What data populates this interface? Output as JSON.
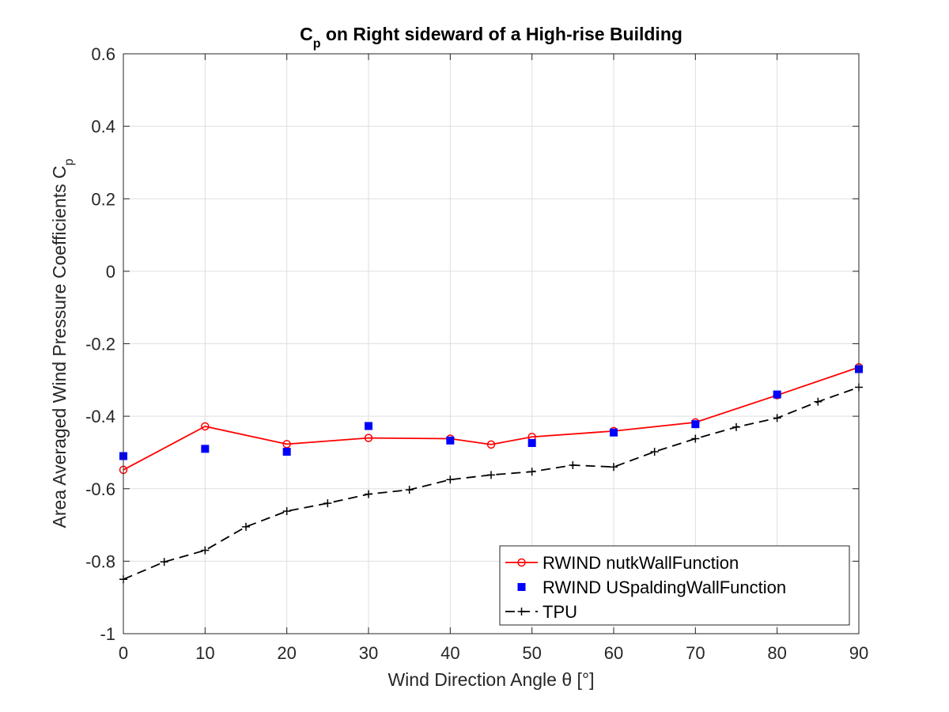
{
  "chart_data": {
    "type": "line",
    "title": {
      "main": "C",
      "sub": "p",
      "rest": " on Right sideward of a High-rise Building"
    },
    "xlabel": "Wind Direction Angle θ [°]",
    "ylabel": {
      "main": "Area Averaged Wind Pressure Coefficients C",
      "sub": "p"
    },
    "xlim": [
      0,
      90
    ],
    "ylim": [
      -1,
      0.6
    ],
    "xticks": [
      0,
      10,
      20,
      30,
      40,
      50,
      60,
      70,
      80,
      90
    ],
    "xtick_labels": [
      "0",
      "10",
      "20",
      "30",
      "40",
      "50",
      "60",
      "70",
      "80",
      "90"
    ],
    "yticks": [
      -1,
      -0.8,
      -0.6,
      -0.4,
      -0.2,
      0,
      0.2,
      0.4,
      0.6
    ],
    "ytick_labels": [
      "-1",
      "-0.8",
      "-0.6",
      "-0.4",
      "-0.2",
      "0",
      "0.2",
      "0.4",
      "0.6"
    ],
    "grid": true,
    "legend_position": "bottom-right",
    "series": [
      {
        "name": "RWIND nutkWallFunction",
        "color": "#ff0000",
        "line": "solid",
        "marker": "circle",
        "x": [
          0,
          10,
          20,
          30,
          40,
          45,
          50,
          60,
          70,
          80,
          90
        ],
        "y": [
          -0.548,
          -0.428,
          -0.477,
          -0.46,
          -0.462,
          -0.478,
          -0.457,
          -0.441,
          -0.417,
          -0.342,
          -0.265
        ]
      },
      {
        "name": "RWIND USpaldingWallFunction",
        "color": "#0000ff",
        "line": "none",
        "marker": "square",
        "x": [
          0,
          10,
          20,
          30,
          40,
          50,
          60,
          70,
          80,
          90
        ],
        "y": [
          -0.51,
          -0.49,
          -0.498,
          -0.427,
          -0.467,
          -0.474,
          -0.445,
          -0.422,
          -0.34,
          -0.27
        ]
      },
      {
        "name": "TPU",
        "color": "#000000",
        "line": "dashed",
        "marker": "plus",
        "x": [
          0,
          5,
          10,
          15,
          20,
          25,
          30,
          35,
          40,
          45,
          50,
          55,
          60,
          65,
          70,
          75,
          80,
          85,
          90
        ],
        "y": [
          -0.85,
          -0.802,
          -0.77,
          -0.705,
          -0.662,
          -0.64,
          -0.615,
          -0.603,
          -0.575,
          -0.562,
          -0.553,
          -0.535,
          -0.54,
          -0.498,
          -0.462,
          -0.43,
          -0.405,
          -0.36,
          -0.32
        ]
      }
    ]
  }
}
